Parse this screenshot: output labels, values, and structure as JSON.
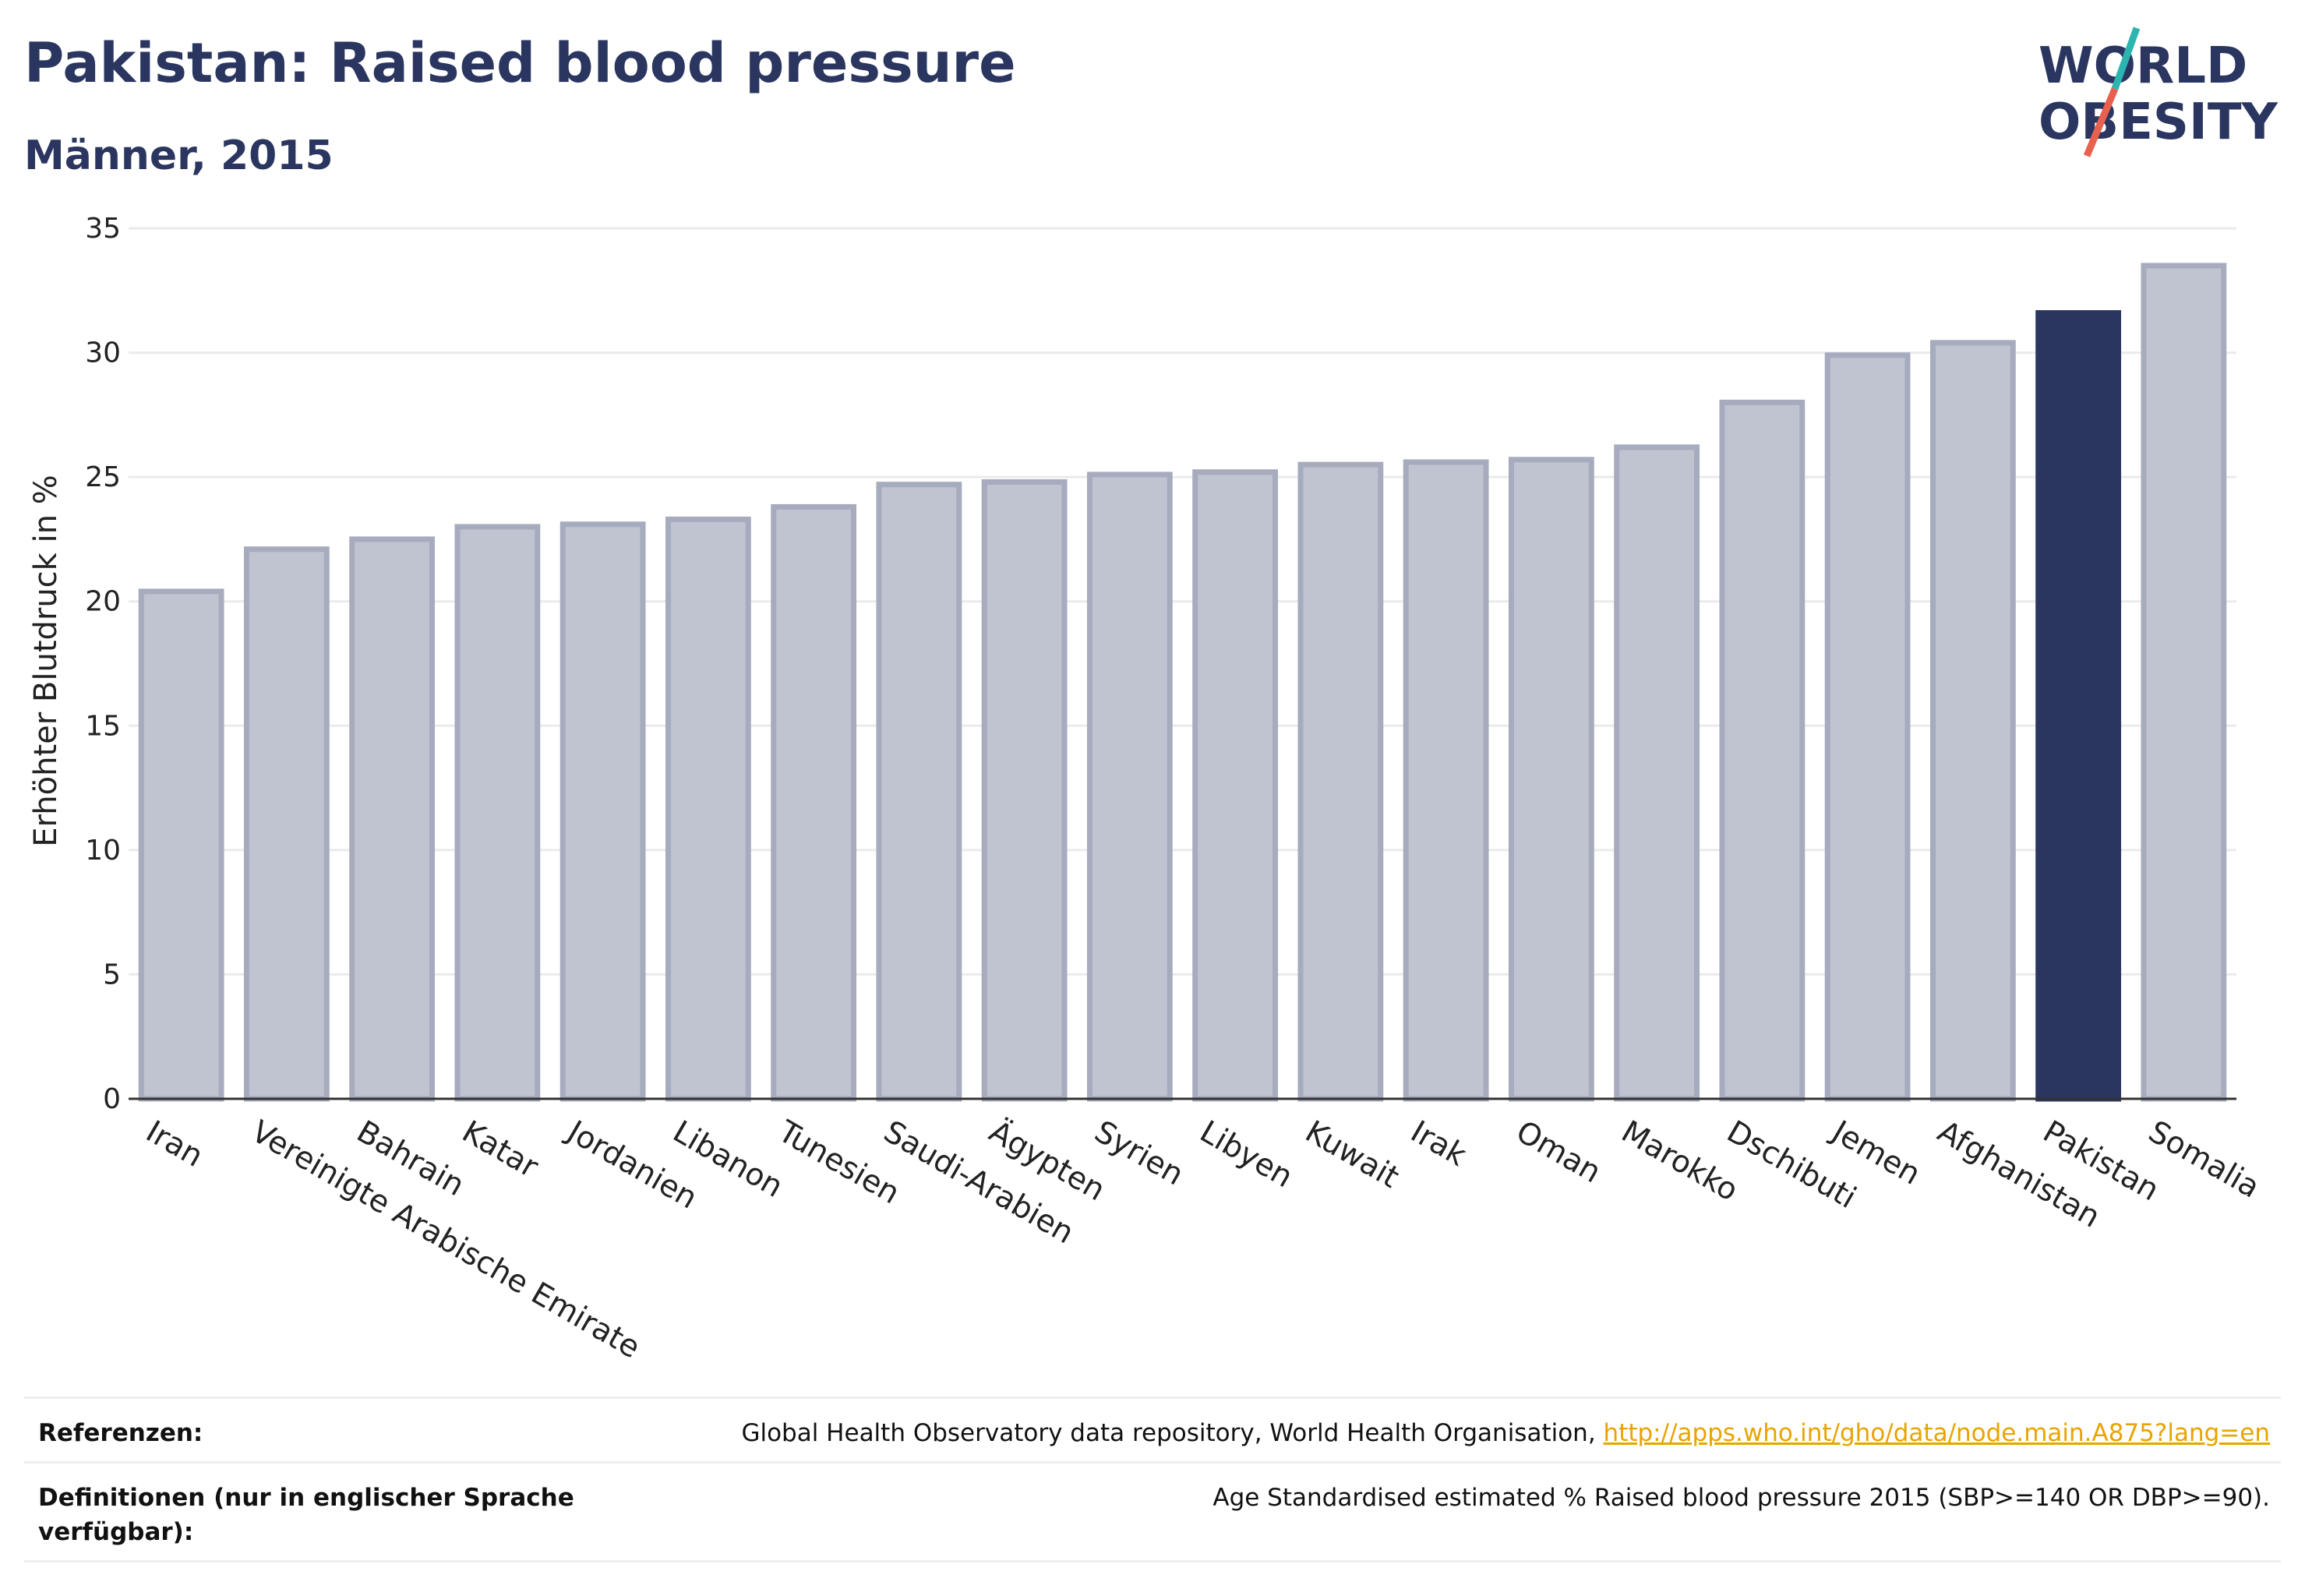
{
  "title": "Pakistan: Raised blood pressure",
  "subtitle": "Männer, 2015",
  "logo": {
    "line1": "WORLD",
    "line2": "OBESITY"
  },
  "colors": {
    "highlight": "#2b3660",
    "bar_fill": "#c0c3d0",
    "bar_stroke": "#a6abbe",
    "text": "#2b3660",
    "link": "#e8a400"
  },
  "chart_data": {
    "type": "bar",
    "ylabel": "Erhöhter Blutdruck in %",
    "xlabel": "",
    "ylim": [
      0,
      35
    ],
    "yticks": [
      0,
      5,
      10,
      15,
      20,
      25,
      30,
      35
    ],
    "grid": true,
    "highlight": "Pakistan",
    "categories": [
      "Iran",
      "Vereinigte Arabische Emirate",
      "Bahrain",
      "Katar",
      "Jordanien",
      "Libanon",
      "Tunesien",
      "Saudi-Arabien",
      "Ägypten",
      "Syrien",
      "Libyen",
      "Kuwait",
      "Irak",
      "Oman",
      "Marokko",
      "Dschibuti",
      "Jemen",
      "Afghanistan",
      "Pakistan",
      "Somalia"
    ],
    "values": [
      20.4,
      22.1,
      22.5,
      23.0,
      23.1,
      23.3,
      23.8,
      24.7,
      24.8,
      25.1,
      25.2,
      25.5,
      25.6,
      25.7,
      26.2,
      28.0,
      29.9,
      30.4,
      31.6,
      33.5
    ]
  },
  "footer": {
    "references_label": "Referenzen:",
    "references_text": "Global Health Observatory data repository, World Health Organisation, ",
    "references_link": "http://apps.who.int/gho/data/node.main.A875?lang=en",
    "definitions_label": "Definitionen (nur in englischer Sprache verfügbar):",
    "definitions_text": "Age Standardised estimated % Raised blood pressure 2015 (SBP>=140 OR DBP>=90)."
  }
}
